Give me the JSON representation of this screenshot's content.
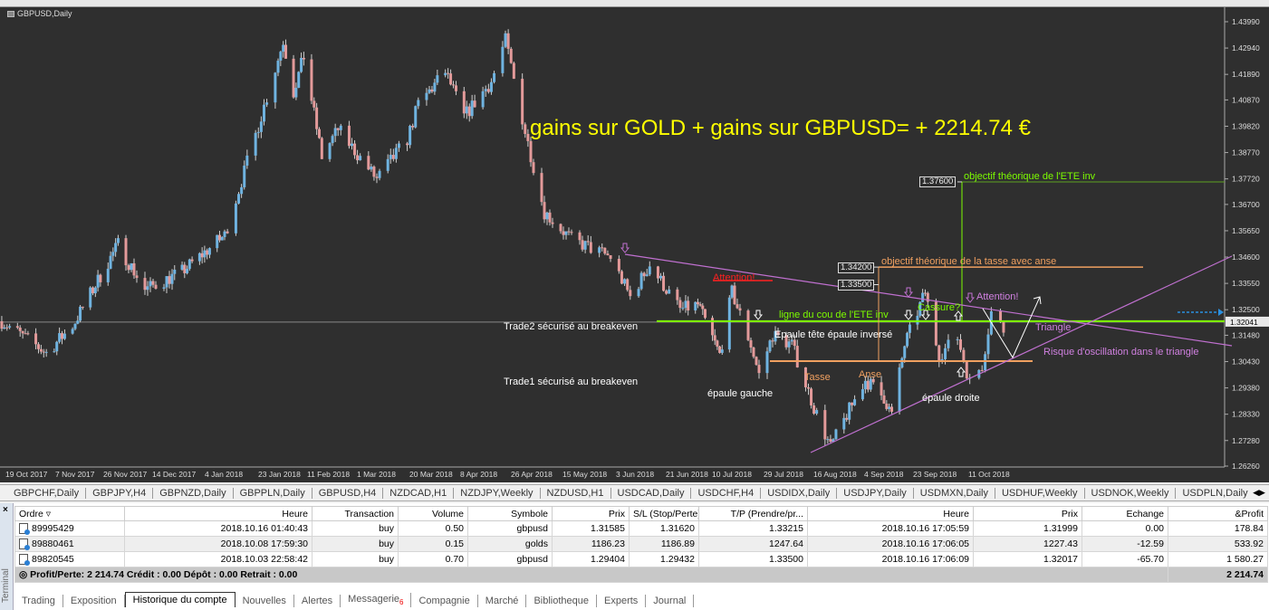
{
  "chart_title": "GBPUSD,Daily",
  "headline": "gains sur GOLD + gains sur GBPUSD= + 2214.74 €",
  "colors": {
    "background": "#2f2f2f",
    "bull": "#6fb3e0",
    "bear": "#e39a9a",
    "neckline": "#7cfc00",
    "ete_target": "#5ea020",
    "tasse": "#f0a060",
    "triangle": "#c070d0",
    "headline": "#ffff00",
    "attention_red": "#ff2020"
  },
  "price_axis": {
    "ticks": [
      "1.43990",
      "1.42940",
      "1.41890",
      "1.40870",
      "1.39820",
      "1.38770",
      "1.37720",
      "1.36700",
      "1.35650",
      "1.34600",
      "1.33550",
      "1.32500",
      "1.31480",
      "1.30430",
      "1.29380",
      "1.28330",
      "1.27280",
      "1.26260"
    ],
    "current": "1.32041"
  },
  "date_axis": [
    "19 Oct 2017",
    "7 Nov 2017",
    "26 Nov 2017",
    "14 Dec 2017",
    "4 Jan 2018",
    "23 Jan 2018",
    "11 Feb 2018",
    "1 Mar 2018",
    "20 Mar 2018",
    "8 Apr 2018",
    "26 Apr 2018",
    "15 May 2018",
    "3 Jun 2018",
    "21 Jun 2018",
    "10 Jul 2018",
    "29 Jul 2018",
    "16 Aug 2018",
    "4 Sep 2018",
    "23 Sep 2018",
    "11 Oct 2018"
  ],
  "chart_data": {
    "type": "candlestick",
    "symbol": "GBPUSD",
    "timeframe": "Daily",
    "ylim": [
      1.2626,
      1.4399
    ],
    "price_path": [
      [
        "2017-10-10",
        1.3204
      ],
      [
        "2017-10-27",
        1.3078
      ],
      [
        "2017-11-06",
        1.3186
      ],
      [
        "2017-11-24",
        1.3511
      ],
      [
        "2017-12-04",
        1.333
      ],
      [
        "2017-12-18",
        1.3402
      ],
      [
        "2018-01-04",
        1.3547
      ],
      [
        "2018-01-11",
        1.38
      ],
      [
        "2018-01-25",
        1.4323
      ],
      [
        "2018-01-29",
        1.412
      ],
      [
        "2018-02-02",
        1.426
      ],
      [
        "2018-02-09",
        1.386
      ],
      [
        "2018-02-15",
        1.397
      ],
      [
        "2018-03-01",
        1.377
      ],
      [
        "2018-03-12",
        1.393
      ],
      [
        "2018-03-16",
        1.407
      ],
      [
        "2018-03-26",
        1.42
      ],
      [
        "2018-04-02",
        1.402
      ],
      [
        "2018-04-12",
        1.416
      ],
      [
        "2018-04-17",
        1.4325
      ],
      [
        "2018-04-24",
        1.396
      ],
      [
        "2018-05-01",
        1.364
      ],
      [
        "2018-05-11",
        1.353
      ],
      [
        "2018-05-25",
        1.346
      ],
      [
        "2018-06-01",
        1.33
      ],
      [
        "2018-06-08",
        1.343
      ],
      [
        "2018-06-19",
        1.325
      ],
      [
        "2018-06-26",
        1.327
      ],
      [
        "2018-07-05",
        1.307
      ],
      [
        "2018-07-10",
        1.332
      ],
      [
        "2018-07-17",
        1.311
      ],
      [
        "2018-07-20",
        1.299
      ],
      [
        "2018-07-25",
        1.315
      ],
      [
        "2018-08-01",
        1.311
      ],
      [
        "2018-08-09",
        1.286
      ],
      [
        "2018-08-15",
        1.27
      ],
      [
        "2018-08-21",
        1.283
      ],
      [
        "2018-08-28",
        1.297
      ],
      [
        "2018-09-04",
        1.29
      ],
      [
        "2018-09-07",
        1.283
      ],
      [
        "2018-09-12",
        1.311
      ],
      [
        "2018-09-20",
        1.332
      ],
      [
        "2018-09-25",
        1.307
      ],
      [
        "2018-10-01",
        1.314
      ],
      [
        "2018-10-05",
        1.296
      ],
      [
        "2018-10-09",
        1.303
      ],
      [
        "2018-10-12",
        1.324
      ],
      [
        "2018-10-16",
        1.317
      ]
    ]
  },
  "annotations": {
    "ete_target_price": "1.37600",
    "ete_target_label": "objectif théorique de l'ETE inv",
    "tasse_target_price": "1.34200",
    "tasse_target_label": "objectif théorique de la tasse avec anse",
    "level_1335": "1.33500",
    "neckline_label": "ligne du cou de l'ETE inv",
    "attention_red": "Attention!",
    "attention_purple": "Attention!",
    "cassure": "Cassure?",
    "triangle": "Triangle",
    "risque": "Risque d'oscillation dans le triangle",
    "trade2": "Trade2 sécurisé au breakeven",
    "trade1": "Trade1 sécurisé au breakeven",
    "epaule_gauche": "épaule gauche",
    "ete": "Epaule tête épaule inversé",
    "epaule_droite": "épaule droite",
    "tasse": "Tasse",
    "anse": "Anse"
  },
  "symbol_tabs": [
    "GBPCHF,Daily",
    "GBPJPY,H4",
    "GBPNZD,Daily",
    "GBPPLN,Daily",
    "GBPUSD,H4",
    "NZDCAD,H1",
    "NZDJPY,Weekly",
    "NZDUSD,H1",
    "USDCAD,Daily",
    "USDCHF,H4",
    "USDIDX,Daily",
    "USDJPY,Daily",
    "USDMXN,Daily",
    "USDHUF,Weekly",
    "USDNOK,Weekly",
    "USDPLN,Daily",
    "USDR("
  ],
  "terminal": {
    "side_label": "Terminal",
    "columns": [
      "Ordre",
      "Heure",
      "Transaction",
      "Volume",
      "Symbole",
      "Prix",
      "S/L (Stop/Perte)",
      "T/P (Prendre/pr...",
      "Heure",
      "Prix",
      "Echange",
      "&Profit"
    ],
    "rows": [
      [
        "89995429",
        "2018.10.16 01:40:43",
        "buy",
        "0.50",
        "gbpusd",
        "1.31585",
        "1.31620",
        "1.33215",
        "2018.10.16 17:05:59",
        "1.31999",
        "0.00",
        "178.84"
      ],
      [
        "89880461",
        "2018.10.08 17:59:30",
        "buy",
        "0.15",
        "golds",
        "1186.23",
        "1186.89",
        "1247.64",
        "2018.10.16 17:06:05",
        "1227.43",
        "-12.59",
        "533.92"
      ],
      [
        "89820545",
        "2018.10.03 22:58:42",
        "buy",
        "0.70",
        "gbpusd",
        "1.29404",
        "1.29432",
        "1.33500",
        "2018.10.16 17:06:09",
        "1.32017",
        "-65.70",
        "1 580.27"
      ]
    ],
    "summary": "Profit/Perte: 2 214.74  Crédit : 0.00  Dépôt : 0.00  Retrait : 0.00",
    "total": "2 214.74",
    "tabs": [
      "Trading",
      "Exposition",
      "Historique du compte",
      "Nouvelles",
      "Alertes",
      "Messagerie",
      "Compagnie",
      "Marché",
      "Bibliotheque",
      "Experts",
      "Journal"
    ],
    "active_tab": "Historique du compte",
    "messagerie_badge": "6"
  }
}
